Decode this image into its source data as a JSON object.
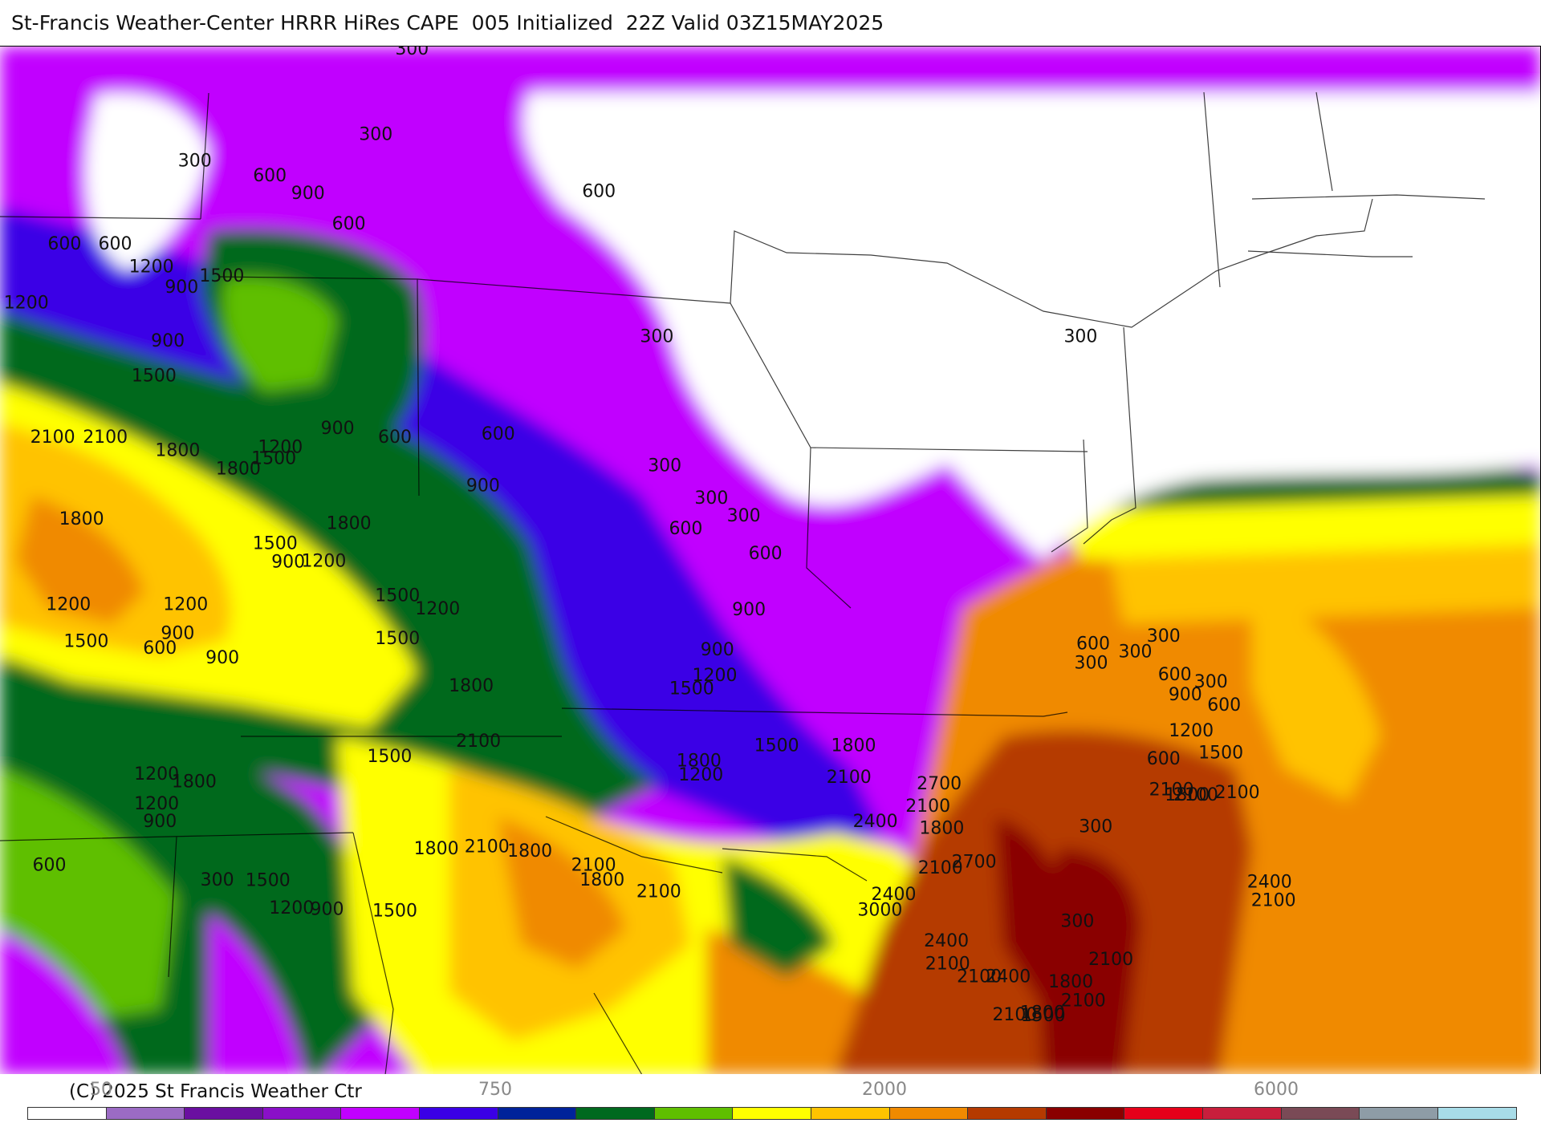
{
  "header": {
    "title": "St-Francis Weather-Center HRRR HiRes CAPE  005 Initialized  22Z Valid 03Z15MAY2025"
  },
  "footer": {
    "copyright": "(C) 2025 St Francis Weather Ctr"
  },
  "colorbar": {
    "colors": [
      "#ffffff",
      "#9b6bc4",
      "#6a0fa0",
      "#8a0fc8",
      "#c100ff",
      "#3a00e6",
      "#00229a",
      "#00691f",
      "#5fbf00",
      "#ffff00",
      "#ffc300",
      "#f08a00",
      "#b53a00",
      "#8a0000",
      "#e6001a",
      "#c81e3c",
      "#7a4a56",
      "#8e9ca6",
      "#a8dce8"
    ],
    "tick_labels": [
      "50",
      "750",
      "2000",
      "6000"
    ]
  },
  "map": {
    "contour_labels": [
      "300",
      "300",
      "300",
      "600",
      "900",
      "600",
      "600",
      "600",
      "1200",
      "1500",
      "900",
      "1200",
      "300",
      "300",
      "600",
      "900",
      "1500",
      "2100",
      "2100",
      "1800",
      "1800",
      "1500",
      "1200",
      "900",
      "600",
      "600",
      "900",
      "1800",
      "1500",
      "1800",
      "900",
      "1200",
      "1500",
      "1200",
      "900",
      "600",
      "1200",
      "1500",
      "900",
      "1500",
      "1200",
      "1800",
      "2100",
      "1500",
      "1200",
      "1800",
      "1200",
      "900",
      "600",
      "300",
      "1500",
      "1200",
      "900",
      "1800",
      "2100",
      "1800",
      "1500",
      "2100",
      "1800",
      "2100",
      "1500",
      "1800",
      "900",
      "1200",
      "300",
      "300",
      "600",
      "300",
      "600",
      "900",
      "1200",
      "1500",
      "1800",
      "2100",
      "2400",
      "2700",
      "2100",
      "1800",
      "2100",
      "2700",
      "3000",
      "2400",
      "2400",
      "2100",
      "2100",
      "2400",
      "2100",
      "1800",
      "1500",
      "2100",
      "1800",
      "2100",
      "300",
      "600",
      "300",
      "300",
      "600",
      "900",
      "300",
      "600",
      "1200",
      "1500",
      "2100",
      "1800",
      "2100",
      "2100",
      "2400",
      "2100",
      "300",
      "600",
      "300"
    ]
  }
}
